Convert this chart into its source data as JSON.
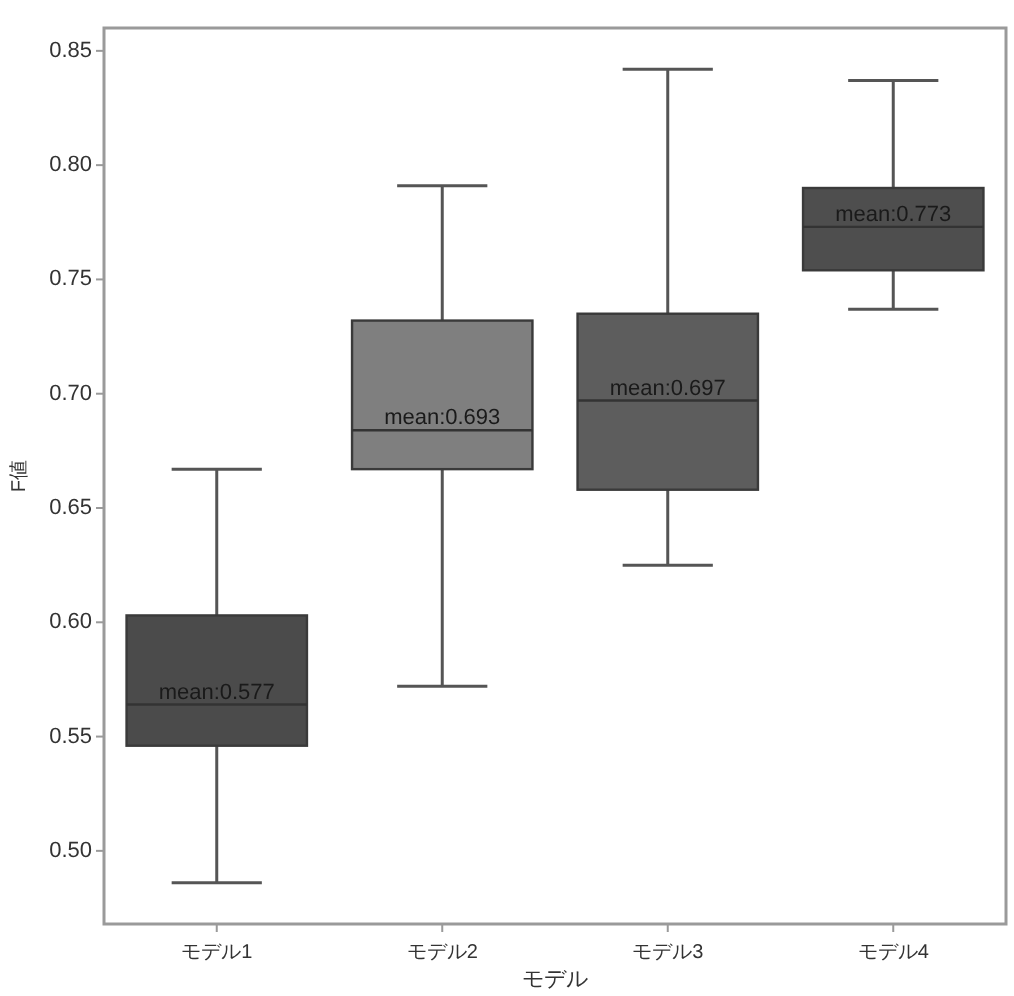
{
  "chart_data": {
    "type": "box",
    "xlabel": "モデル",
    "ylabel": "F値",
    "categories": [
      "モデル1",
      "モデル2",
      "モデル3",
      "モデル4"
    ],
    "colors": [
      "#4b4b4b",
      "#7f7f7f",
      "#5d5d5d",
      "#4e4e4e"
    ],
    "boxes": [
      {
        "low": 0.486,
        "q1": 0.546,
        "median": 0.564,
        "q3": 0.603,
        "high": 0.667
      },
      {
        "low": 0.572,
        "q1": 0.667,
        "median": 0.684,
        "q3": 0.732,
        "high": 0.791
      },
      {
        "low": 0.625,
        "q1": 0.658,
        "median": 0.697,
        "q3": 0.735,
        "high": 0.842
      },
      {
        "low": 0.737,
        "q1": 0.754,
        "median": 0.773,
        "q3": 0.79,
        "high": 0.837
      }
    ],
    "ylim": [
      0.468,
      0.86
    ],
    "yticks": [
      {
        "value": 0.5,
        "label": "0.50"
      },
      0.55,
      {
        "value": 0.6,
        "label": "0.60"
      },
      0.65,
      {
        "value": 0.7,
        "label": "0.70"
      },
      0.75,
      {
        "value": 0.8,
        "label": "0.80"
      },
      0.85
    ],
    "annotations": [
      {
        "text": "mean:0.577",
        "x": "モデル1",
        "y": 0.564
      },
      {
        "text": "mean:0.693",
        "x": "モデル2",
        "y": 0.684
      },
      {
        "text": "mean:0.697",
        "x": "モデル3",
        "y": 0.697
      },
      {
        "text": "mean:0.773",
        "x": "モデル4",
        "y": 0.773
      }
    ]
  }
}
